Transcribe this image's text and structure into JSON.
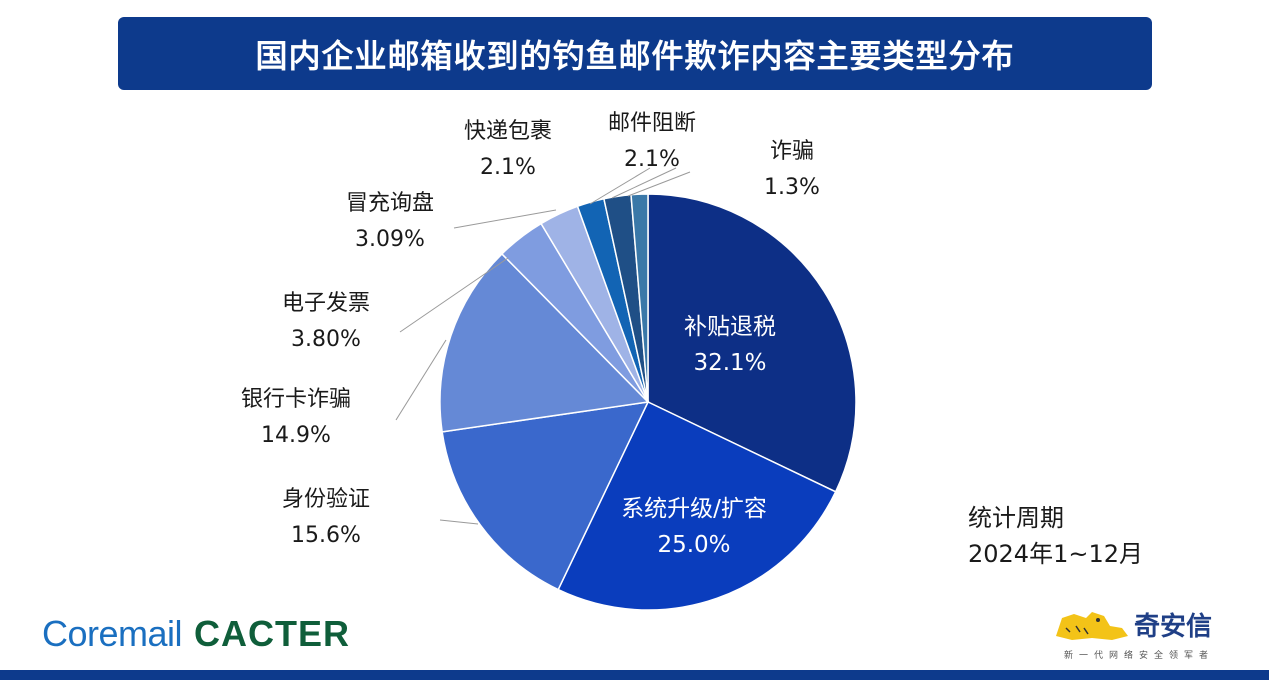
{
  "title": "国内企业邮箱收到的钓鱼邮件欺诈内容主要类型分布",
  "chart_data": {
    "type": "pie",
    "title": "国内企业邮箱收到的钓鱼邮件欺诈内容主要类型分布",
    "slices": [
      {
        "name": "补贴退税",
        "value": 32.1,
        "label": "32.1%",
        "color": "#0d2f86",
        "label_inside": true
      },
      {
        "name": "系统升级/扩容",
        "value": 25.0,
        "label": "25.0%",
        "color": "#0a3dbd",
        "label_inside": true
      },
      {
        "name": "身份验证",
        "value": 15.6,
        "label": "15.6%",
        "color": "#3a68cc",
        "label_inside": false
      },
      {
        "name": "银行卡诈骗",
        "value": 14.9,
        "label": "14.9%",
        "color": "#6589d6",
        "label_inside": false
      },
      {
        "name": "电子发票",
        "value": 3.8,
        "label": "3.80%",
        "color": "#7f9ce0",
        "label_inside": false
      },
      {
        "name": "冒充询盘",
        "value": 3.09,
        "label": "3.09%",
        "color": "#9fb3e6",
        "label_inside": false
      },
      {
        "name": "快递包裹",
        "value": 2.1,
        "label": "2.1%",
        "color": "#1264b4",
        "label_inside": false
      },
      {
        "name": "邮件阻断",
        "value": 2.1,
        "label": "2.1%",
        "color": "#1f4f86",
        "label_inside": false
      },
      {
        "name": "诈骗",
        "value": 1.3,
        "label": "1.3%",
        "color": "#3a78a8",
        "label_inside": false
      }
    ]
  },
  "period": {
    "line1": "统计周期",
    "line2": "2024年1~12月"
  },
  "brands": {
    "coremail": "Coremail",
    "cacter": "CACTER",
    "qianxin": "奇安信",
    "qianxin_tagline": "新一代网络安全领军者"
  },
  "colors": {
    "banner": "#0d3a8c",
    "leader_line": "#9a9a9a"
  }
}
